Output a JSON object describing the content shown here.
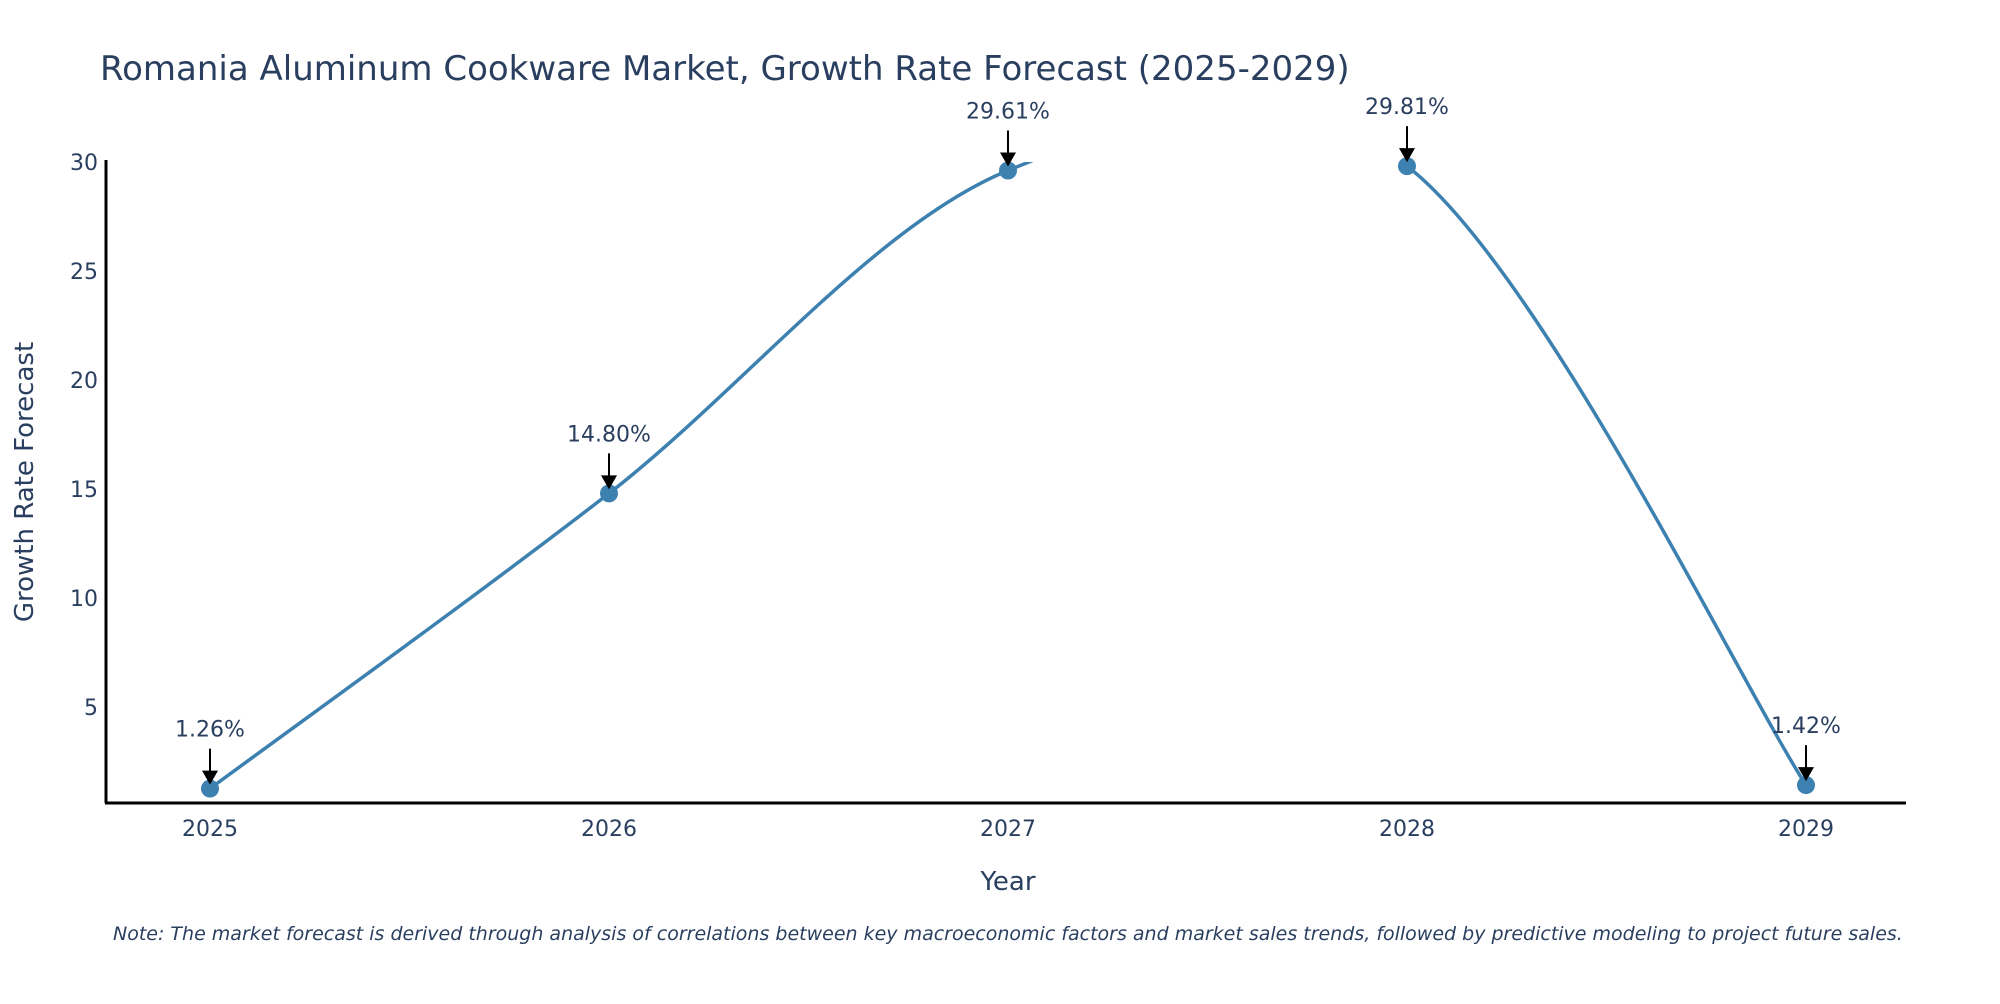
{
  "chart_data": {
    "type": "line",
    "title": "Romania Aluminum Cookware Market, Growth Rate Forecast (2025-2029)",
    "xlabel": "Year",
    "ylabel": "Growth Rate Forecast",
    "categories": [
      "2025",
      "2026",
      "2027",
      "2028",
      "2029"
    ],
    "series": [
      {
        "name": "Growth Rate Forecast",
        "values": [
          1.26,
          14.8,
          29.61,
          29.81,
          1.42
        ],
        "labels": [
          "1.26%",
          "14.80%",
          "29.61%",
          "29.81%",
          "1.42%"
        ],
        "color": "#3d81b0"
      }
    ],
    "yticks": [
      "5",
      "10",
      "15",
      "20",
      "25",
      "30"
    ],
    "ylim": [
      0.6,
      30
    ],
    "grid": false,
    "note": "Note: The market forecast is derived through analysis of correlations between key macroeconomic factors and market sales trends, followed by predictive modeling to project future sales."
  }
}
